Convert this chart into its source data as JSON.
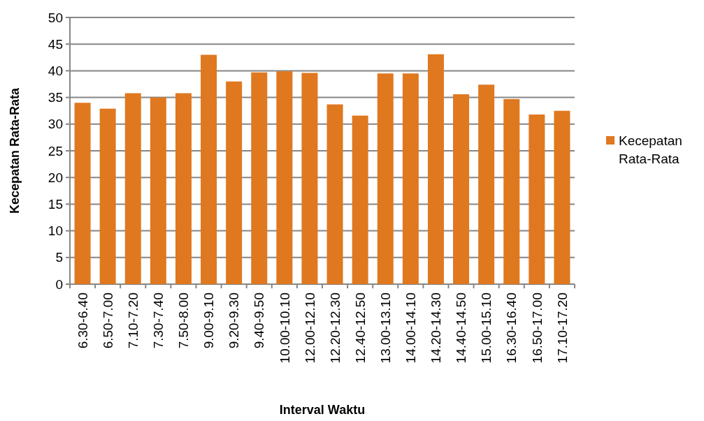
{
  "chart_data": {
    "type": "bar",
    "xlabel": "Interval Waktu",
    "ylabel": "Kecepatan Rata-Rata",
    "categories": [
      "6.30-6.40",
      "6.50-7.00",
      "7.10-7.20",
      "7.30-7.40",
      "7.50-8.00",
      "9.00-9.10",
      "9.20-9.30",
      "9.40-9.50",
      "10.00-10.10",
      "12.00-12.10",
      "12.20-12.30",
      "12.40-12.50",
      "13.00-13.10",
      "14.00-14.10",
      "14.20-14.30",
      "14.40-14.50",
      "15.00-15.10",
      "16.30-16.40",
      "16.50-17.00",
      "17.10-17.20"
    ],
    "series": [
      {
        "name": "Kecepatan Rata-Rata",
        "color": "#e07820",
        "values": [
          34.0,
          32.9,
          35.8,
          35.0,
          35.8,
          43.0,
          38.0,
          39.7,
          39.9,
          39.6,
          33.7,
          31.6,
          39.5,
          39.5,
          43.1,
          35.6,
          37.4,
          34.7,
          31.8,
          32.5
        ]
      }
    ],
    "ylim": [
      0,
      50
    ],
    "yticks": [
      0,
      5,
      10,
      15,
      20,
      25,
      30,
      35,
      40,
      45,
      50
    ],
    "grid": "y",
    "legend": "right"
  }
}
